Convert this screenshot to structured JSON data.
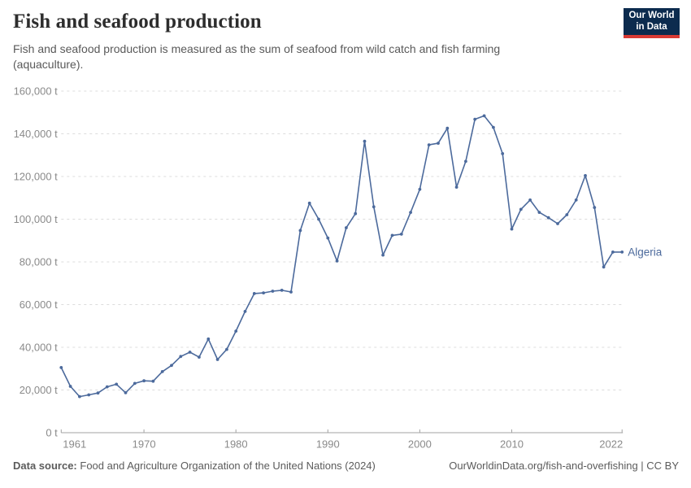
{
  "header": {
    "title": "Fish and seafood production",
    "subtitle": "Fish and seafood production is measured as the sum of seafood from wild catch and fish farming (aquaculture).",
    "logo": {
      "line1": "Our World",
      "line2": "in Data",
      "bg_color": "#0c2b4e",
      "bar_color": "#d93a34"
    }
  },
  "chart_data": {
    "type": "line",
    "title": "Fish and seafood production",
    "entity": "Algeria",
    "unit": "tonnes",
    "unit_suffix": " t",
    "x_range": [
      1961,
      2022
    ],
    "y_range": [
      0,
      160000
    ],
    "x_ticks": [
      1961,
      1970,
      1980,
      1990,
      2000,
      2010,
      2022
    ],
    "y_ticks": [
      0,
      20000,
      40000,
      60000,
      80000,
      100000,
      120000,
      140000,
      160000
    ],
    "grid": "horizontal-dashed",
    "legend_position": "end-of-line",
    "series": [
      {
        "name": "Algeria",
        "color": "#4c6a9c",
        "years": [
          1961,
          1962,
          1963,
          1964,
          1965,
          1966,
          1967,
          1968,
          1969,
          1970,
          1971,
          1972,
          1973,
          1974,
          1975,
          1976,
          1977,
          1978,
          1979,
          1980,
          1981,
          1982,
          1983,
          1984,
          1985,
          1986,
          1987,
          1988,
          1989,
          1990,
          1991,
          1992,
          1993,
          1994,
          1995,
          1996,
          1997,
          1998,
          1999,
          2000,
          2001,
          2002,
          2003,
          2004,
          2005,
          2006,
          2007,
          2008,
          2009,
          2010,
          2011,
          2012,
          2013,
          2014,
          2015,
          2016,
          2017,
          2018,
          2019,
          2020,
          2021,
          2022
        ],
        "values": [
          30500,
          21700,
          16900,
          17700,
          18600,
          21500,
          22700,
          18700,
          23100,
          24300,
          24100,
          28600,
          31500,
          35700,
          37700,
          35400,
          43900,
          34300,
          39000,
          47600,
          56800,
          65200,
          65500,
          66300,
          66700,
          65900,
          94700,
          107500,
          100000,
          91200,
          80400,
          96000,
          102600,
          136500,
          105800,
          83200,
          92400,
          93000,
          103200,
          114000,
          134800,
          135600,
          142600,
          115000,
          127100,
          146800,
          148400,
          143000,
          130700,
          95400,
          104600,
          109000,
          103200,
          100700,
          97900,
          102100,
          109000,
          120400,
          105500,
          77600,
          84600,
          84600
        ]
      }
    ],
    "colors": {
      "line": "#4c6a9c",
      "gridline": "#dcdcdc",
      "axis": "#a3a3a3",
      "tick_label": "#8a8a8a"
    }
  },
  "footer": {
    "source_label": "Data source:",
    "source_text": "Food and Agriculture Organization of the United Nations (2024)",
    "link_text": "OurWorldinData.org/fish-and-overfishing | CC BY"
  }
}
